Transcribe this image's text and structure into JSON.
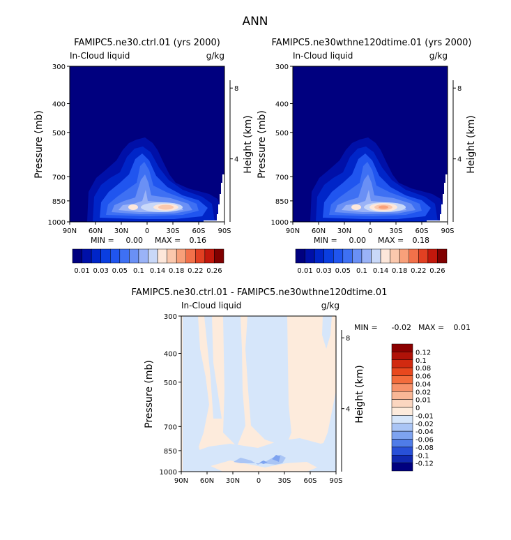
{
  "page_title": "ANN",
  "chart_data": [
    {
      "type": "contour",
      "title": "FAMIPC5.ne30.ctrl.01 (yrs 2000)",
      "left_subtitle": "In-Cloud liquid",
      "right_subtitle": "g/kg",
      "ylabel": "Pressure (mb)",
      "ylabel_right": "Height (km)",
      "xtick_labels": [
        "90N",
        "60N",
        "30N",
        "0",
        "30S",
        "60S",
        "90S"
      ],
      "ytick_labels": [
        "300",
        "400",
        "500",
        "700",
        "850",
        "1000"
      ],
      "right_tick_labels": [
        "8",
        "4"
      ],
      "stats": {
        "min_label": "MIN =",
        "min": "0.00",
        "max_label": "MAX =",
        "max": "0.16"
      },
      "colorbar": {
        "labels": [
          "0.01",
          "0.03",
          "0.05",
          "0.1",
          "0.14",
          "0.18",
          "0.22",
          "0.26"
        ],
        "levels": [
          0.01,
          0.02,
          0.03,
          0.04,
          0.05,
          0.07,
          0.1,
          0.12,
          0.14,
          0.16,
          0.18,
          0.2,
          0.22,
          0.24,
          0.26
        ],
        "colors": [
          "#00007f",
          "#0010a8",
          "#0025c8",
          "#0a3ee0",
          "#2055ef",
          "#3e70f3",
          "#6a90f5",
          "#9ab3f7",
          "#c9d8f8",
          "#fde7da",
          "#fbc8ad",
          "#f8a07a",
          "#f2714a",
          "#e24022",
          "#c2180c",
          "#800000"
        ]
      }
    },
    {
      "type": "contour",
      "title": "FAMIPC5.ne30wthne120dtime.01 (yrs 2000)",
      "left_subtitle": "In-Cloud liquid",
      "right_subtitle": "g/kg",
      "ylabel": "Pressure (mb)",
      "ylabel_right": "Height (km)",
      "xtick_labels": [
        "90N",
        "60N",
        "30N",
        "0",
        "30S",
        "60S",
        "90S"
      ],
      "ytick_labels": [
        "300",
        "400",
        "500",
        "700",
        "850",
        "1000"
      ],
      "right_tick_labels": [
        "8",
        "4"
      ],
      "stats": {
        "min_label": "MIN =",
        "min": "0.00",
        "max_label": "MAX =",
        "max": "0.18"
      },
      "colorbar": {
        "labels": [
          "0.01",
          "0.03",
          "0.05",
          "0.1",
          "0.14",
          "0.18",
          "0.22",
          "0.26"
        ],
        "levels": [
          0.01,
          0.02,
          0.03,
          0.04,
          0.05,
          0.07,
          0.1,
          0.12,
          0.14,
          0.16,
          0.18,
          0.2,
          0.22,
          0.24,
          0.26
        ],
        "colors": [
          "#00007f",
          "#0010a8",
          "#0025c8",
          "#0a3ee0",
          "#2055ef",
          "#3e70f3",
          "#6a90f5",
          "#9ab3f7",
          "#c9d8f8",
          "#fde7da",
          "#fbc8ad",
          "#f8a07a",
          "#f2714a",
          "#e24022",
          "#c2180c",
          "#800000"
        ]
      }
    },
    {
      "type": "contour",
      "title": "FAMIPC5.ne30.ctrl.01 - FAMIPC5.ne30wthne120dtime.01",
      "left_subtitle": "In-Cloud liquid",
      "right_subtitle": "g/kg",
      "ylabel": "Pressure (mb)",
      "ylabel_right": "Height (km)",
      "xtick_labels": [
        "90N",
        "60N",
        "30N",
        "0",
        "30S",
        "60S",
        "90S"
      ],
      "ytick_labels": [
        "300",
        "400",
        "500",
        "700",
        "850",
        "1000"
      ],
      "right_tick_labels": [
        "8",
        "4"
      ],
      "stats": {
        "min_label": "MIN =",
        "min": "-0.02",
        "max_label": "MAX =",
        "max": "0.01"
      },
      "colorbar": {
        "labels": [
          "0.12",
          "0.1",
          "0.08",
          "0.06",
          "0.04",
          "0.02",
          "0.01",
          "0",
          "-0.01",
          "-0.02",
          "-0.04",
          "-0.06",
          "-0.08",
          "-0.1",
          "-0.12"
        ],
        "colors": [
          "#8b0000",
          "#b01208",
          "#d12a10",
          "#e8481e",
          "#f36c3c",
          "#f7926a",
          "#f9b796",
          "#fbd6c0",
          "#fdebdc",
          "#d6e6fa",
          "#aac5f5",
          "#7ea3f0",
          "#4f7ce8",
          "#2850d8",
          "#1028b0",
          "#00007f"
        ]
      }
    }
  ]
}
